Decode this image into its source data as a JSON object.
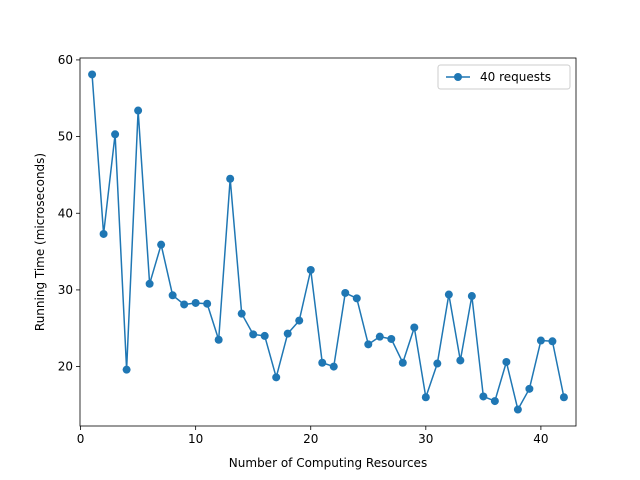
{
  "chart_data": {
    "type": "line",
    "title": "",
    "xlabel": "Number of Computing Resources",
    "ylabel": "Running Time (microseconds)",
    "xlim": [
      -0.05,
      43.05
    ],
    "ylim": [
      12.25,
      60.25
    ],
    "x_ticks": [
      0,
      10,
      20,
      30,
      40
    ],
    "y_ticks": [
      20,
      30,
      40,
      50,
      60
    ],
    "grid": false,
    "legend_position": "top-right",
    "series": [
      {
        "name": "40 requests",
        "color": "#1f77b4",
        "marker": "circle",
        "x": [
          1,
          2,
          3,
          4,
          5,
          6,
          7,
          8,
          9,
          10,
          11,
          12,
          13,
          14,
          15,
          16,
          17,
          18,
          19,
          20,
          21,
          22,
          23,
          24,
          25,
          26,
          27,
          28,
          29,
          30,
          31,
          32,
          33,
          34,
          35,
          36,
          37,
          38,
          39,
          40,
          41,
          42
        ],
        "y": [
          58.1,
          37.3,
          50.3,
          19.6,
          53.4,
          30.8,
          35.9,
          29.3,
          28.1,
          28.3,
          28.2,
          23.5,
          44.5,
          26.9,
          24.2,
          24.0,
          18.6,
          24.3,
          26.0,
          32.6,
          20.5,
          20.0,
          29.6,
          28.9,
          22.9,
          23.9,
          23.6,
          20.5,
          25.1,
          16.0,
          20.4,
          29.4,
          20.8,
          29.2,
          16.1,
          15.5,
          20.6,
          14.4,
          17.1,
          23.4,
          23.3,
          16.0
        ]
      }
    ]
  }
}
